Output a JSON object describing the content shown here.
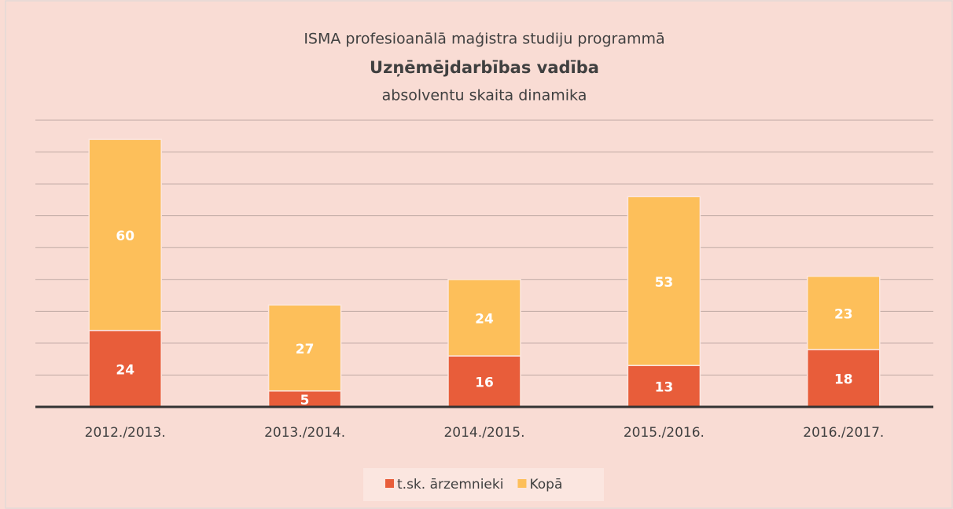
{
  "chart_data": {
    "type": "stacked_bar",
    "title": "ISMA profesioanālā maģistra studiju programmā",
    "subtitle": "Uzņēmējdarbības vadība",
    "subtitle2": "absolventu skaita dinamika",
    "categories": [
      "2012./2013.",
      "2013./2014.",
      "2014./2015.",
      "2015./2016.",
      "2016./2017."
    ],
    "series": [
      {
        "name": "t.sk. ārzemnieki",
        "color": "#e85d3a",
        "values": [
          24,
          5,
          16,
          13,
          18
        ]
      },
      {
        "name": "Kopā",
        "color": "#fdbf5a",
        "values": [
          60,
          27,
          24,
          53,
          23
        ]
      }
    ],
    "ylim": [
      0,
      90
    ],
    "yticks": [
      0,
      10,
      20,
      30,
      40,
      50,
      60,
      70,
      80,
      90
    ],
    "grid": true,
    "legend": "bottom"
  }
}
